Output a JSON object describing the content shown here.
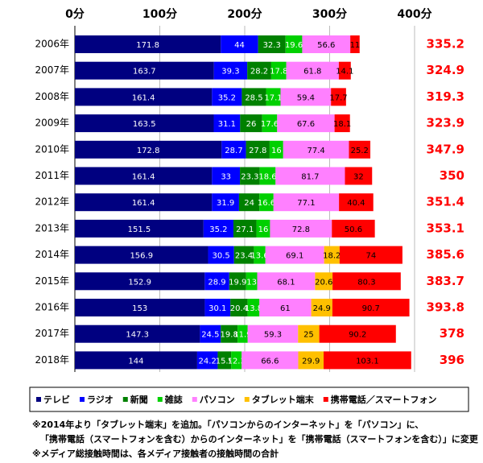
{
  "chart_data": {
    "type": "stacked-bar-horizontal",
    "categories": [
      "2006年",
      "2007年",
      "2008年",
      "2009年",
      "2010年",
      "2011年",
      "2012年",
      "2013年",
      "2014年",
      "2015年",
      "2016年",
      "2017年",
      "2018年"
    ],
    "series": [
      {
        "name": "テレビ",
        "color": "#000080",
        "values": [
          171.8,
          163.7,
          161.4,
          163.5,
          172.8,
          161.4,
          161.4,
          151.5,
          156.9,
          152.9,
          153.0,
          147.3,
          144.0
        ]
      },
      {
        "name": "ラジオ",
        "color": "#0000ff",
        "values": [
          44.0,
          39.3,
          35.2,
          31.1,
          28.7,
          33.0,
          31.9,
          35.2,
          30.5,
          28.9,
          30.1,
          24.5,
          24.2
        ]
      },
      {
        "name": "新聞",
        "color": "#008000",
        "values": [
          32.3,
          28.2,
          28.5,
          26.0,
          27.8,
          23.3,
          24.0,
          27.1,
          23.4,
          19.9,
          20.4,
          19.8,
          15.9
        ]
      },
      {
        "name": "雑誌",
        "color": "#00d000",
        "values": [
          19.6,
          17.8,
          17.1,
          17.6,
          16.0,
          18.6,
          16.6,
          16.0,
          13.6,
          13.0,
          13.8,
          11.9,
          12.3
        ]
      },
      {
        "name": "パソコン",
        "color": "#ff80ff",
        "values": [
          56.6,
          61.8,
          59.4,
          67.6,
          77.4,
          81.7,
          77.1,
          72.8,
          69.1,
          68.1,
          61.0,
          59.3,
          66.6
        ]
      },
      {
        "name": "タブレット端末",
        "color": "#ffc000",
        "values": [
          null,
          null,
          null,
          null,
          null,
          null,
          null,
          null,
          18.2,
          20.6,
          24.9,
          25.0,
          29.9
        ]
      },
      {
        "name": "携帯電話／スマートフォン",
        "color": "#ff0000",
        "values": [
          11.0,
          14.1,
          17.7,
          18.1,
          25.2,
          32.0,
          40.4,
          50.6,
          74.0,
          80.3,
          90.7,
          90.2,
          103.1
        ]
      }
    ],
    "totals": [
      335.2,
      324.9,
      319.3,
      323.9,
      347.9,
      350.0,
      351.4,
      353.1,
      385.6,
      383.7,
      393.8,
      378.0,
      396.0
    ],
    "totals_color": "#ff0000",
    "xlim": [
      0,
      400
    ],
    "xticks": [
      {
        "value": 0,
        "label": "0分"
      },
      {
        "value": 100,
        "label": "100分"
      },
      {
        "value": 200,
        "label": "200分"
      },
      {
        "value": 300,
        "label": "300分"
      },
      {
        "value": 400,
        "label": "400分"
      }
    ],
    "grid": true,
    "notes": [
      "※2014年より「タブレット端末」を追加。「パソコンからのインターネット」を「パソコン」に、",
      "「携帯電話（スマートフォンを含む）からのインターネット」を「携帯電話（スマートフォンを含む）」に変更",
      "※メディア総接触時間は、各メディア接触者の接触時間の合計"
    ]
  }
}
